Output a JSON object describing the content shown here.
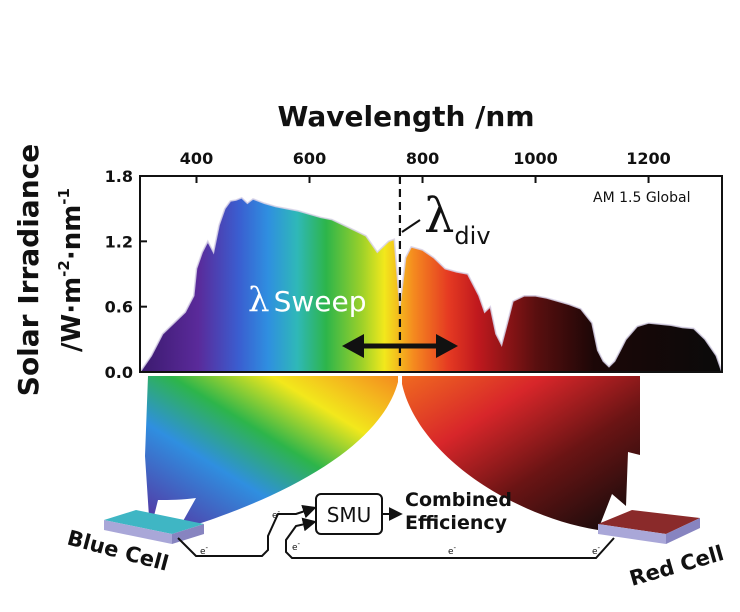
{
  "chart_data": {
    "type": "area",
    "title": "Wavelength /nm",
    "xlabel": "Wavelength /nm",
    "ylabel": "Solar Irradiance /W·m⁻²·nm⁻¹",
    "ylabel_line1": "Solar Irradiance",
    "ylabel_line2_base": "/W·m",
    "ylabel_exp1": "-2",
    "ylabel_mid": "·nm",
    "ylabel_exp2": "-1",
    "xlim": [
      300,
      1330
    ],
    "ylim": [
      0,
      1.8
    ],
    "x_ticks": [
      400,
      600,
      800,
      1000,
      1200
    ],
    "x_tick_labels": [
      "400",
      "600",
      "800",
      "1000",
      "1200"
    ],
    "y_ticks": [
      0,
      0.6,
      1.2,
      1.8
    ],
    "y_tick_labels": [
      "0.0",
      "0.6",
      "1.2",
      "1.8"
    ],
    "legend": "AM 1.5 Global",
    "legend_position": "top-right",
    "divider": {
      "x": 760,
      "label": "λ",
      "subscript": "div"
    },
    "sweep_label": {
      "lambda": "λ",
      "text": "Sweep"
    },
    "series": [
      {
        "name": "AM 1.5 Global",
        "x": [
          300,
          320,
          330,
          340,
          360,
          380,
          395,
          400,
          410,
          420,
          430,
          440,
          450,
          460,
          470,
          480,
          490,
          500,
          520,
          540,
          560,
          580,
          600,
          620,
          640,
          660,
          680,
          700,
          720,
          740,
          750,
          760,
          770,
          780,
          800,
          820,
          840,
          860,
          880,
          900,
          910,
          920,
          930,
          940,
          950,
          960,
          980,
          1000,
          1020,
          1040,
          1060,
          1080,
          1100,
          1110,
          1120,
          1130,
          1140,
          1150,
          1160,
          1180,
          1200,
          1220,
          1240,
          1260,
          1280,
          1300,
          1320,
          1330
        ],
        "values": [
          0.0,
          0.15,
          0.25,
          0.35,
          0.45,
          0.55,
          0.7,
          0.95,
          1.1,
          1.2,
          1.1,
          1.35,
          1.5,
          1.57,
          1.58,
          1.6,
          1.55,
          1.59,
          1.55,
          1.52,
          1.5,
          1.48,
          1.45,
          1.42,
          1.4,
          1.35,
          1.3,
          1.25,
          1.1,
          1.2,
          1.22,
          0.6,
          1.05,
          1.15,
          1.12,
          1.05,
          0.95,
          0.92,
          0.9,
          0.7,
          0.55,
          0.6,
          0.35,
          0.25,
          0.45,
          0.65,
          0.7,
          0.7,
          0.68,
          0.65,
          0.62,
          0.58,
          0.45,
          0.2,
          0.1,
          0.05,
          0.1,
          0.2,
          0.3,
          0.42,
          0.45,
          0.44,
          0.43,
          0.41,
          0.4,
          0.3,
          0.15,
          0.0
        ]
      }
    ]
  },
  "diagram": {
    "blue_cell": "Blue Cell",
    "red_cell": "Red Cell",
    "smu": "SMU",
    "combined_line1": "Combined",
    "combined_line2": "Efficiency",
    "electron": "e",
    "electron_sup": "-"
  },
  "colors": {
    "violet": "#5a2a9a",
    "blue": "#2f8fe0",
    "green": "#2db54a",
    "yellow": "#f2e81c",
    "orange": "#f58a1f",
    "red": "#d8262a",
    "dark_red": "#5a0f0f",
    "black": "#0a0a0a",
    "blue_cell_top": "#3fb6c4",
    "red_cell_top": "#8a2a2a"
  }
}
